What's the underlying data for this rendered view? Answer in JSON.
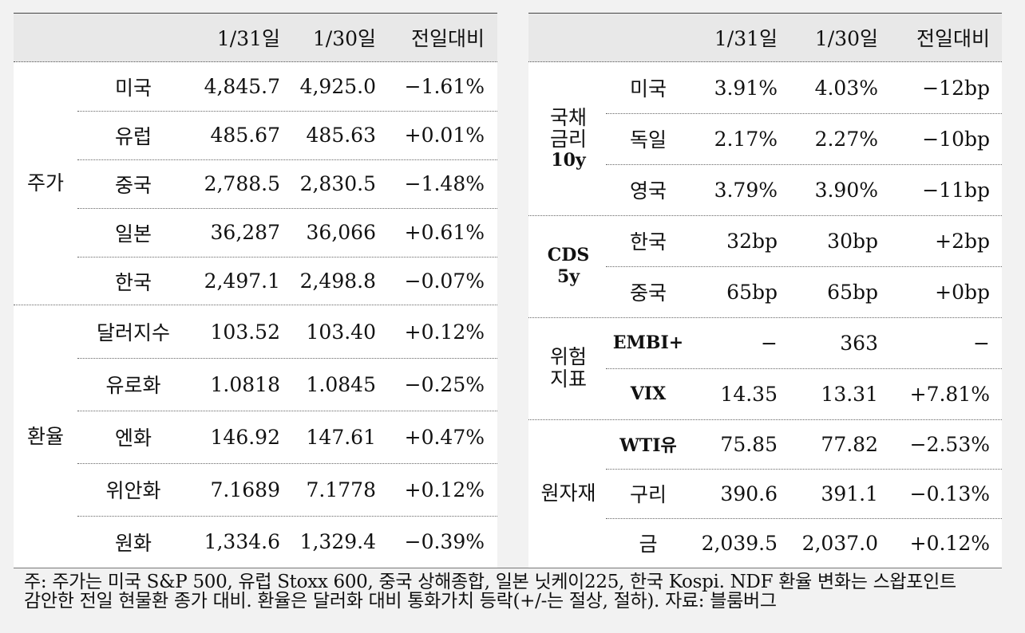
{
  "left": {
    "headers": [
      "1/31일",
      "1/30일",
      "전일대비"
    ],
    "groups": [
      {
        "label": "주가",
        "rows": [
          {
            "name": "미국",
            "d1": "4,845.7",
            "d0": "4,925.0",
            "chg": "−1.61%"
          },
          {
            "name": "유럽",
            "d1": "485.67",
            "d0": "485.63",
            "chg": "+0.01%"
          },
          {
            "name": "중국",
            "d1": "2,788.5",
            "d0": "2,830.5",
            "chg": "−1.48%"
          },
          {
            "name": "일본",
            "d1": "36,287",
            "d0": "36,066",
            "chg": "+0.61%"
          },
          {
            "name": "한국",
            "d1": "2,497.1",
            "d0": "2,498.8",
            "chg": "−0.07%"
          }
        ]
      },
      {
        "label": "환율",
        "rows": [
          {
            "name": "달러지수",
            "d1": "103.52",
            "d0": "103.40",
            "chg": "+0.12%"
          },
          {
            "name": "유로화",
            "d1": "1.0818",
            "d0": "1.0845",
            "chg": "−0.25%"
          },
          {
            "name": "엔화",
            "d1": "146.92",
            "d0": "147.61",
            "chg": "+0.47%"
          },
          {
            "name": "위안화",
            "d1": "7.1689",
            "d0": "7.1778",
            "chg": "+0.12%"
          },
          {
            "name": "원화",
            "d1": "1,334.6",
            "d0": "1,329.4",
            "chg": "−0.39%"
          }
        ]
      }
    ]
  },
  "right": {
    "headers": [
      "1/31일",
      "1/30일",
      "전일대비"
    ],
    "groups": [
      {
        "label_lines": [
          "국채",
          "금리",
          "10y"
        ],
        "rows": [
          {
            "name": "미국",
            "d1": "3.91%",
            "d0": "4.03%",
            "chg": "−12bp"
          },
          {
            "name": "독일",
            "d1": "2.17%",
            "d0": "2.27%",
            "chg": "−10bp"
          },
          {
            "name": "영국",
            "d1": "3.79%",
            "d0": "3.90%",
            "chg": "−11bp"
          }
        ]
      },
      {
        "label_lines": [
          "CDS",
          "5y"
        ],
        "rows": [
          {
            "name": "한국",
            "d1": "32bp",
            "d0": "30bp",
            "chg": "+2bp"
          },
          {
            "name": "중국",
            "d1": "65bp",
            "d0": "65bp",
            "chg": "+0bp"
          }
        ]
      },
      {
        "label_lines": [
          "위험",
          "지표"
        ],
        "rows": [
          {
            "name": "EMBI+",
            "d1": "−",
            "d0": "363",
            "chg": "−"
          },
          {
            "name": "VIX",
            "d1": "14.35",
            "d0": "13.31",
            "chg": "+7.81%"
          }
        ]
      },
      {
        "label_lines": [
          "원자재"
        ],
        "rows": [
          {
            "name": "WTI유",
            "d1": "75.85",
            "d0": "77.82",
            "chg": "−2.53%"
          },
          {
            "name": "구리",
            "d1": "390.6",
            "d0": "391.1",
            "chg": "−0.13%"
          },
          {
            "name": "금",
            "d1": "2,039.5",
            "d0": "2,037.0",
            "chg": "+0.12%"
          }
        ]
      }
    ]
  },
  "note": {
    "line1": "주: 주가는 미국 S&P 500, 유럽 Stoxx 600, 중국 상해종합, 일본 닛케이225, 한국 Kospi. NDF 환율 변화는 스왑포인트",
    "line2": "감안한 전일 현물환 종가 대비. 환율은 달러화 대비 통화가치 등락(+/-는 절상, 절하). 자료: 블룸버그"
  }
}
